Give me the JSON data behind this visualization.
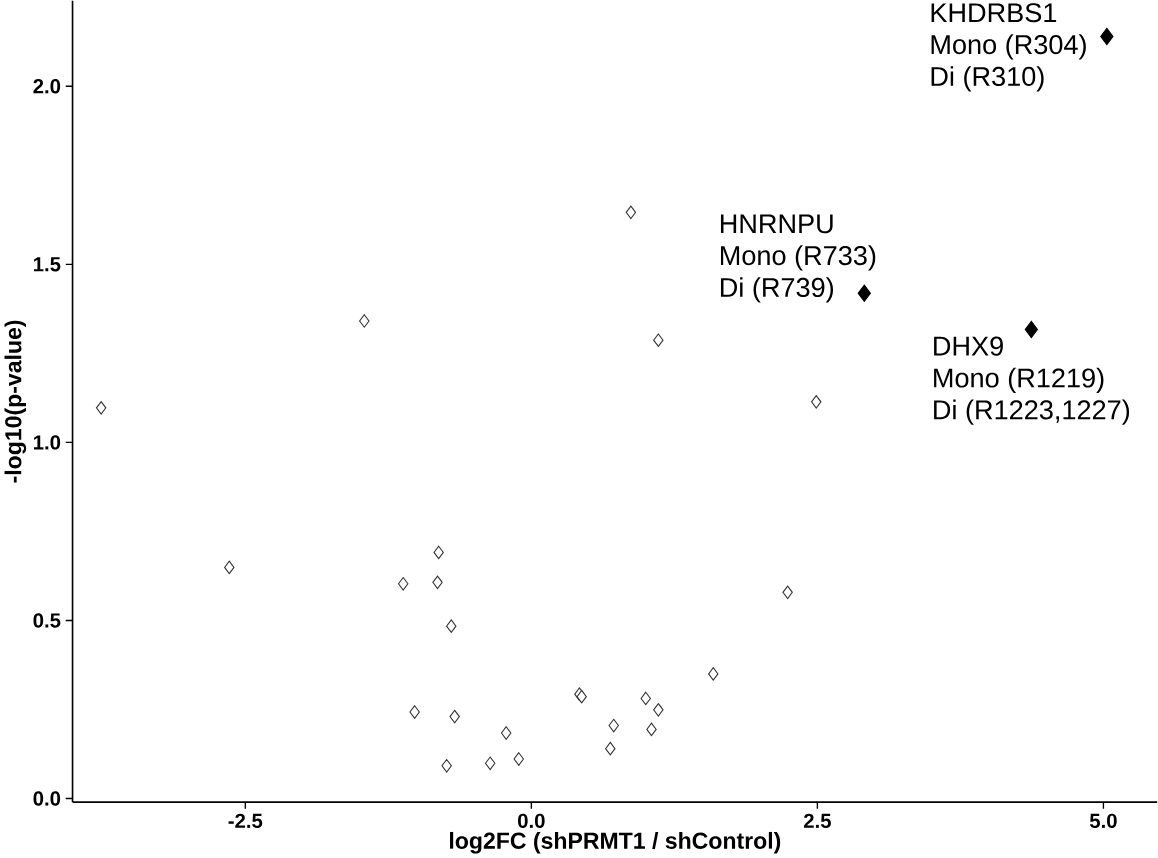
{
  "chart_data": {
    "type": "scatter",
    "xlabel": "log2FC (shPRMT1 / shControl)",
    "ylabel": "-log10(p-value)",
    "xlim": [
      -4.01,
      5.47
    ],
    "ylim": [
      -0.01,
      2.24
    ],
    "xticks": [
      {
        "value": -2.5,
        "label": "-2.5"
      },
      {
        "value": 0,
        "label": "0.0"
      },
      {
        "value": 2.5,
        "label": "2.5"
      },
      {
        "value": 5,
        "label": "5.0"
      }
    ],
    "yticks": [
      {
        "value": 0,
        "label": "0.0"
      },
      {
        "value": 0.5,
        "label": "0.5"
      },
      {
        "value": 1,
        "label": "1.0"
      },
      {
        "value": 1.5,
        "label": "1.5"
      },
      {
        "value": 2,
        "label": "2.0"
      }
    ],
    "grid": false,
    "marker": "diamond",
    "series": [
      {
        "color": "#333333",
        "x": [
          -3.76,
          -2.64,
          -1.46,
          -1.12,
          -0.82,
          -0.81,
          -0.7,
          -1.02,
          -0.67,
          -0.74,
          -0.36,
          -0.22,
          -0.11,
          0.42,
          0.44,
          0.72,
          0.69,
          0.87,
          1.11,
          2.49,
          2.24,
          1.59,
          1.0,
          1.11,
          1.05
        ],
        "values": [
          1.097,
          0.649,
          1.341,
          0.603,
          0.607,
          0.691,
          0.484,
          0.243,
          0.23,
          0.092,
          0.099,
          0.184,
          0.111,
          0.293,
          0.286,
          0.205,
          0.14,
          1.646,
          1.287,
          1.114,
          0.579,
          0.35,
          0.281,
          0.249,
          0.194
        ]
      },
      {
        "color": "#000000",
        "x": [
          5.03,
          2.91,
          4.37
        ],
        "values": [
          2.14,
          1.419,
          1.317
        ]
      }
    ],
    "annotations": [
      {
        "text": "KHDRBS1",
        "x": 5.03,
        "y": 2.14
      },
      {
        "text": "Mono (R304)",
        "x": 5.03,
        "y": 2.14
      },
      {
        "text": "Di (R310)",
        "x": 5.03,
        "y": 2.14
      },
      {
        "text": "HNRNPU",
        "x": 2.91,
        "y": 1.419
      },
      {
        "text": "Mono (R733)",
        "x": 2.91,
        "y": 1.419
      },
      {
        "text": "Di (R739)",
        "x": 2.91,
        "y": 1.419
      },
      {
        "text": "DHX9",
        "x": 4.37,
        "y": 1.317
      },
      {
        "text": "Mono (R1219)",
        "x": 4.37,
        "y": 1.317
      },
      {
        "text": "Di (R1223,1227)",
        "x": 4.37,
        "y": 1.317
      }
    ]
  }
}
